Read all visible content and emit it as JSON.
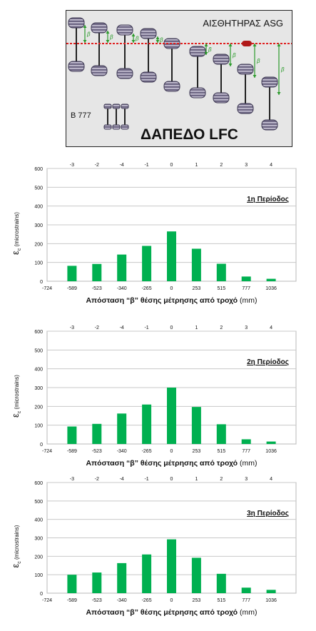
{
  "diagram": {
    "sensor_label": "ΑΙΣΘΗΤΗΡΑΣ ASG",
    "aircraft_label": "B 777",
    "floor_label": "ΔΑΠΕΔΟ LFC",
    "beta_symbol": "β",
    "colors": {
      "dashed_line": "#e02020",
      "sensor": "#b01818",
      "arrows": "#2a9a2a",
      "tyre": "#7a7190",
      "background": "#e6e6e6"
    }
  },
  "chart_data": [
    {
      "type": "bar",
      "title": "1η Περίοδος",
      "ylabel_main": "ε",
      "ylabel_sub": "c",
      "ylabel_units": "(microstrains)",
      "xlabel": "Απόσταση “β” θέσης μέτρησης από τροχό",
      "xlabel_units": "(mm)",
      "categories": [
        "-589",
        "-523",
        "-340",
        "-265",
        "0",
        "253",
        "515",
        "777",
        "1036"
      ],
      "x_left_label": "-724",
      "top_categories": [
        "-3",
        "-2",
        "-4",
        "-1",
        "0",
        "1",
        "2",
        "3",
        "4"
      ],
      "values": [
        82,
        92,
        142,
        188,
        265,
        173,
        93,
        25,
        13
      ],
      "ylim": [
        0,
        600
      ],
      "yticks": [
        "0",
        "100",
        "200",
        "300",
        "400",
        "500",
        "600"
      ],
      "grid": true,
      "bar_color": "#00b050"
    },
    {
      "type": "bar",
      "title": "2η Περίοδος",
      "ylabel_main": "ε",
      "ylabel_sub": "c",
      "ylabel_units": "(microstrains)",
      "xlabel": "Απόσταση “β” θέσης μέτρησης από τροχό",
      "xlabel_units": "(mm)",
      "categories": [
        "-589",
        "-523",
        "-340",
        "-265",
        "0",
        "253",
        "515",
        "777",
        "1036"
      ],
      "x_left_label": "-724",
      "top_categories": [
        "-3",
        "-2",
        "-4",
        "-1",
        "0",
        "1",
        "2",
        "3",
        "4"
      ],
      "values": [
        93,
        107,
        162,
        210,
        300,
        197,
        105,
        25,
        13
      ],
      "ylim": [
        0,
        600
      ],
      "yticks": [
        "0",
        "100",
        "200",
        "300",
        "400",
        "500",
        "600"
      ],
      "grid": true,
      "bar_color": "#00b050"
    },
    {
      "type": "bar",
      "title": "3η Περίοδος",
      "ylabel_main": "ε",
      "ylabel_sub": "c",
      "ylabel_units": "(microstrains)",
      "xlabel": "Απόσταση “β” θέσης μέτρησης από τροχό",
      "xlabel_units": "(mm)",
      "categories": [
        "-589",
        "-523",
        "-340",
        "-265",
        "0",
        "253",
        "515",
        "777",
        "1036"
      ],
      "x_left_label": "-724",
      "top_categories": [
        "-3",
        "-2",
        "-4",
        "-1",
        "0",
        "1",
        "2",
        "3",
        "4"
      ],
      "values": [
        100,
        112,
        163,
        210,
        292,
        192,
        105,
        30,
        18
      ],
      "ylim": [
        0,
        600
      ],
      "yticks": [
        "0",
        "100",
        "200",
        "300",
        "400",
        "500",
        "600"
      ],
      "grid": true,
      "bar_color": "#00b050"
    }
  ]
}
